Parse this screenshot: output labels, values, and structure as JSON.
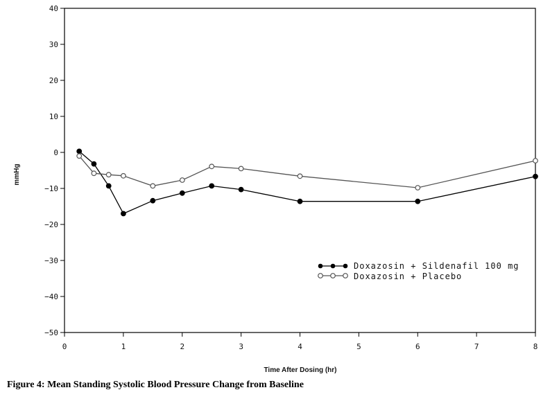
{
  "chart_data": {
    "type": "line",
    "title": "",
    "xlabel": "Time After Dosing (hr)",
    "ylabel": "mmHg",
    "xlim": [
      0,
      8
    ],
    "ylim": [
      -50,
      40
    ],
    "xticks": [
      0,
      1,
      2,
      3,
      4,
      5,
      6,
      7,
      8
    ],
    "yticks": [
      -50,
      -40,
      -30,
      -20,
      -10,
      0,
      10,
      20,
      30,
      40
    ],
    "series": [
      {
        "name": "Doxazosin + Sildenafil 100 mg",
        "marker": "filled-circle",
        "color": "#000000",
        "x": [
          0.25,
          0.5,
          0.75,
          1,
          1.5,
          2,
          2.5,
          3,
          4,
          6,
          8
        ],
        "y": [
          0.3,
          -3.2,
          -9.3,
          -17.0,
          -13.4,
          -11.3,
          -9.3,
          -10.3,
          -13.6,
          -13.6,
          -6.7
        ]
      },
      {
        "name": "Doxazosin + Placebo",
        "marker": "open-circle",
        "color": "#555555",
        "x": [
          0.25,
          0.5,
          0.75,
          1,
          1.5,
          2,
          2.5,
          3,
          4,
          6,
          8
        ],
        "y": [
          -1.0,
          -5.8,
          -6.2,
          -6.5,
          -9.3,
          -7.7,
          -3.9,
          -4.5,
          -6.6,
          -9.8,
          -2.3
        ]
      }
    ],
    "legend_position": "lower-right",
    "grid": false
  },
  "caption": "Figure 4: Mean Standing Systolic Blood Pressure Change from Baseline"
}
